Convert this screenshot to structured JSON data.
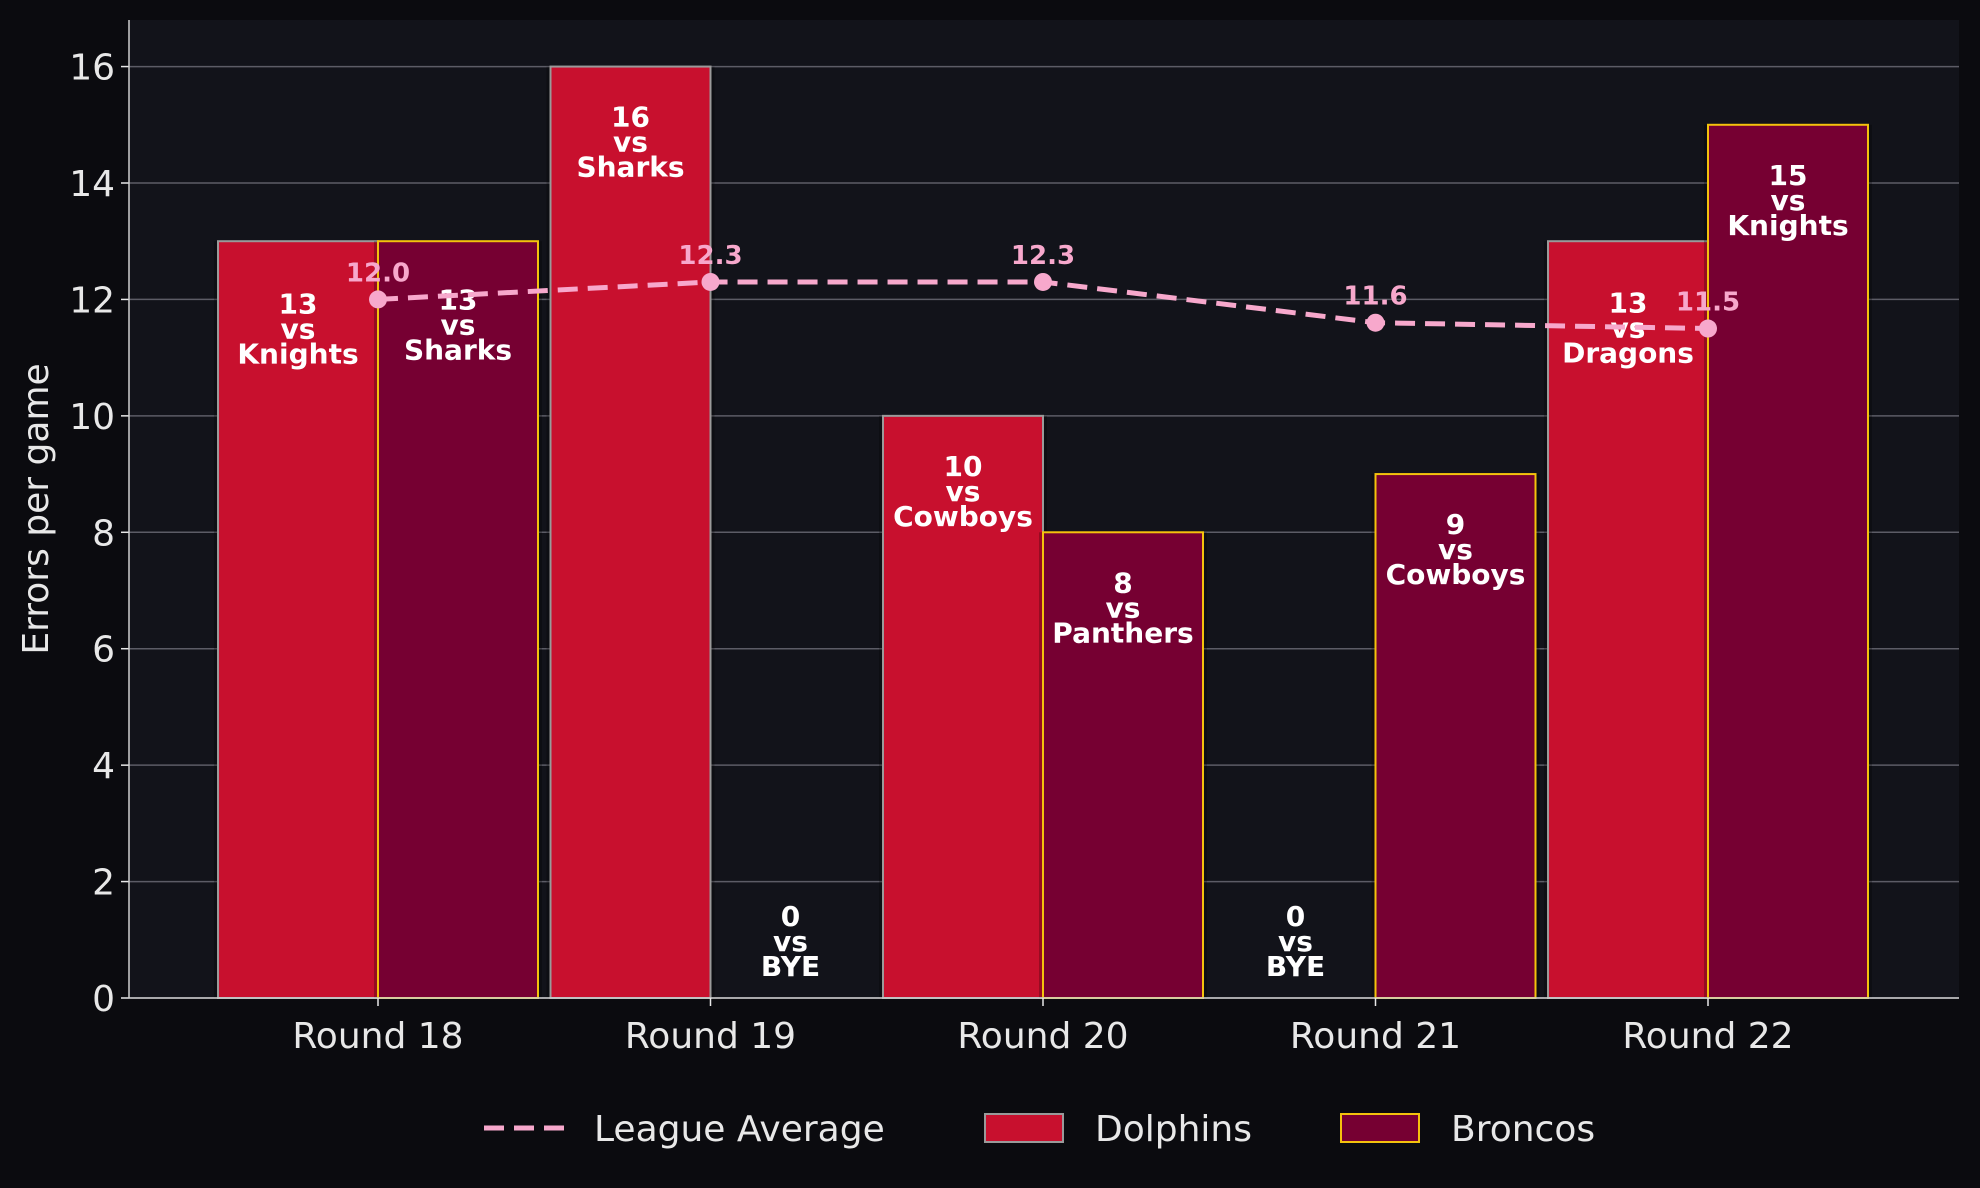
{
  "chart_data": {
    "type": "bar",
    "title": "",
    "xlabel": "",
    "ylabel": "Errors per game",
    "ylim": [
      0,
      16.8
    ],
    "yticks": [
      0,
      2,
      4,
      6,
      8,
      10,
      12,
      14,
      16
    ],
    "categories": [
      "Round 18",
      "Round 19",
      "Round 20",
      "Round 21",
      "Round 22"
    ],
    "series": [
      {
        "name": "Dolphins",
        "values": [
          13,
          16,
          10,
          0,
          13
        ],
        "labels": [
          "13\nvs\nKnights",
          "16\nvs\nSharks",
          "10\nvs\nCowboys",
          "0\nvs\nBYE",
          "13\nvs\nDragons"
        ],
        "color": "#c8102e",
        "edge": "#9a9a9a"
      },
      {
        "name": "Broncos",
        "values": [
          13,
          0,
          8,
          9,
          15
        ],
        "labels": [
          "13\nvs\nSharks",
          "0\nvs\nBYE",
          "8\nvs\nPanthers",
          "9\nvs\nCowboys",
          "15\nvs\nKnights"
        ],
        "color": "#760032",
        "edge": "#f4c20d"
      },
      {
        "name": "League Average",
        "type": "line",
        "values": [
          12.0,
          12.3,
          12.3,
          11.6,
          11.5
        ],
        "labels": [
          "12.0",
          "12.3",
          "12.3",
          "11.6",
          "11.5"
        ],
        "color": "#f7a8cc"
      }
    ],
    "legend": [
      "League Average",
      "Dolphins",
      "Broncos"
    ],
    "legend_position": "bottom-center",
    "grid": true,
    "colors": {
      "background": "#0b0b0f",
      "plot_background": "#12131a",
      "grid": "#5c5c66",
      "text": "#e8e8e8",
      "bar_label": "#ffffff"
    }
  }
}
